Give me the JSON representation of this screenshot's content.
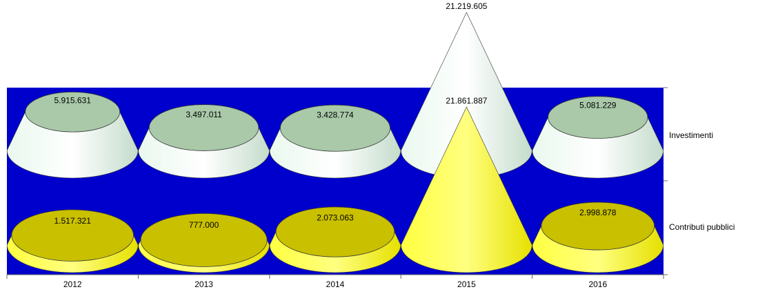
{
  "chart_data": {
    "type": "cone",
    "categories": [
      "2012",
      "2013",
      "2014",
      "2015",
      "2016"
    ],
    "series": [
      {
        "name": "Investimenti",
        "color": "#dff3e4",
        "top_color": "#a9c9a9",
        "values": [
          5915631,
          3497011,
          3428774,
          21219605,
          5081229
        ],
        "value_labels": [
          "5.915.631",
          "3.497.011",
          "3.428.774",
          "21.219.605",
          "5.081.229"
        ]
      },
      {
        "name": "Contributi pubblici",
        "color": "#ffff00",
        "top_color": "#c9c000",
        "values": [
          1517321,
          777000,
          2073063,
          21861887,
          2998878
        ],
        "value_labels": [
          "1.517.321",
          "777.000",
          "2.073.063",
          "21.861.887",
          "2.998.878"
        ]
      }
    ],
    "background": "#0000cc"
  }
}
